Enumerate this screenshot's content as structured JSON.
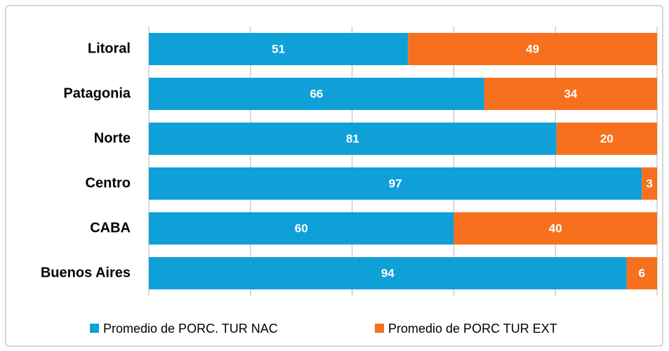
{
  "chart_data": {
    "type": "bar",
    "orientation": "horizontal",
    "stacking": "percent",
    "categories": [
      "Litoral",
      "Patagonia",
      "Norte",
      "Centro",
      "CABA",
      "Buenos Aires"
    ],
    "series": [
      {
        "name": "Promedio de PORC. TUR NAC",
        "color": "#0fa0d8",
        "values": [
          51,
          66,
          81,
          97,
          60,
          94
        ]
      },
      {
        "name": "Promedio de PORC TUR EXT",
        "color": "#f7701e",
        "values": [
          49,
          34,
          20,
          3,
          40,
          6
        ]
      }
    ],
    "xlim": [
      0,
      100
    ],
    "xticks": [
      0,
      20,
      40,
      60,
      80,
      100
    ],
    "grid": true,
    "legend": "bottom"
  }
}
